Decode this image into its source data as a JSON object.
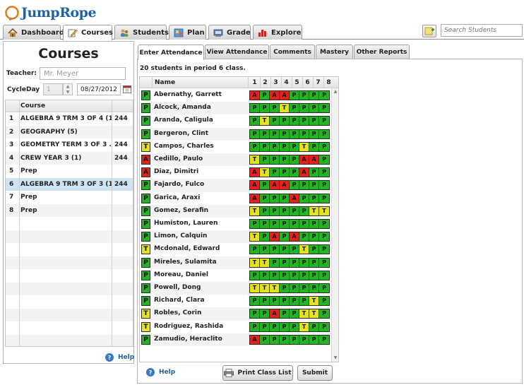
{
  "app": {
    "name": "JumpRope"
  },
  "nav": {
    "tabs": [
      {
        "label": "Dashboard",
        "icon": "house-icon"
      },
      {
        "label": "Courses",
        "icon": "pencil-icon"
      },
      {
        "label": "Students",
        "icon": "students-icon"
      },
      {
        "label": "Plan",
        "icon": "plan-icon"
      },
      {
        "label": "Grade",
        "icon": "grade-icon"
      },
      {
        "label": "Explore",
        "icon": "bar-chart-icon"
      }
    ],
    "active": "Courses"
  },
  "search": {
    "placeholder": "Search Students"
  },
  "left": {
    "title": "Courses",
    "teacher_label": "Teacher:",
    "teacher_value": "Mr. Meyer",
    "cycleday_label": "CycleDay",
    "cycleday_value": "1",
    "date_value": "08/27/2012",
    "table_header": "Course",
    "courses": [
      {
        "num": "1",
        "name": "ALGEBRA 9 TRM 3 OF 4 (1)",
        "room": "244"
      },
      {
        "num": "2",
        "name": "GEOGRAPHY (5)",
        "room": ""
      },
      {
        "num": "3",
        "name": "GEOMETRY TERM 3 OF 3 ...",
        "room": "244"
      },
      {
        "num": "4",
        "name": "CREW YEAR 3 (1)",
        "room": "244"
      },
      {
        "num": "5",
        "name": "Prep",
        "room": ""
      },
      {
        "num": "6",
        "name": "ALGEBRA 9 TRM 3 OF 3 (1)",
        "room": "244"
      },
      {
        "num": "7",
        "name": "Prep",
        "room": ""
      },
      {
        "num": "8",
        "name": "Prep",
        "room": ""
      }
    ],
    "selected_index": 5,
    "help_label": "Help"
  },
  "right": {
    "tabs": [
      "Enter Attendance",
      "View Attendance",
      "Comments",
      "Mastery",
      "Other Reports"
    ],
    "active_tab": "Enter Attendance",
    "summary": "20 students in period 6 class.",
    "name_header": "Name",
    "periods": [
      "1",
      "2",
      "3",
      "4",
      "5",
      "6",
      "7",
      "8"
    ],
    "students": [
      {
        "name": "Abernathy, Garrett",
        "status": "P",
        "marks": [
          "A",
          "P",
          "A",
          "A",
          "P",
          "P",
          "P",
          "P"
        ]
      },
      {
        "name": "Alcock, Amanda",
        "status": "P",
        "marks": [
          "P",
          "P",
          "P",
          "T",
          "P",
          "P",
          "P",
          "P"
        ]
      },
      {
        "name": "Aranda, Caligula",
        "status": "P",
        "marks": [
          "P",
          "T",
          "P",
          "P",
          "P",
          "P",
          "P",
          "P"
        ]
      },
      {
        "name": "Bergeron, Clint",
        "status": "P",
        "marks": [
          "P",
          "P",
          "P",
          "P",
          "P",
          "P",
          "P",
          "P"
        ]
      },
      {
        "name": "Campos, Charles",
        "status": "T",
        "marks": [
          "P",
          "P",
          "P",
          "P",
          "P",
          "T",
          "P",
          "P"
        ]
      },
      {
        "name": "Cedillo, Paulo",
        "status": "A",
        "marks": [
          "T",
          "P",
          "P",
          "P",
          "P",
          "A",
          "A",
          "P"
        ]
      },
      {
        "name": "Diaz, Dimitri",
        "status": "A",
        "marks": [
          "A",
          "T",
          "P",
          "P",
          "P",
          "A",
          "P",
          "P"
        ]
      },
      {
        "name": "Fajardo, Fulco",
        "status": "P",
        "marks": [
          "A",
          "P",
          "A",
          "A",
          "P",
          "P",
          "P",
          "P"
        ]
      },
      {
        "name": "Garica, Araxi",
        "status": "P",
        "marks": [
          "A",
          "P",
          "P",
          "P",
          "A",
          "P",
          "P",
          "P"
        ]
      },
      {
        "name": "Gomez, Serafin",
        "status": "P",
        "marks": [
          "T",
          "P",
          "P",
          "P",
          "P",
          "P",
          "T",
          "T"
        ]
      },
      {
        "name": "Humiston, Lauren",
        "status": "P",
        "marks": [
          "P",
          "P",
          "P",
          "P",
          "P",
          "P",
          "P",
          "P"
        ]
      },
      {
        "name": "Limon, Calquin",
        "status": "P",
        "marks": [
          "T",
          "P",
          "A",
          "P",
          "A",
          "P",
          "P",
          "P"
        ]
      },
      {
        "name": "Mcdonald, Edward",
        "status": "T",
        "marks": [
          "P",
          "P",
          "P",
          "P",
          "P",
          "T",
          "P",
          "P"
        ]
      },
      {
        "name": "Mireles, Sulamita",
        "status": "P",
        "marks": [
          "T",
          "T",
          "P",
          "P",
          "P",
          "P",
          "P",
          "P"
        ]
      },
      {
        "name": "Moreau, Daniel",
        "status": "P",
        "marks": [
          "P",
          "P",
          "P",
          "P",
          "P",
          "P",
          "P",
          "P"
        ]
      },
      {
        "name": "Powell, Dong",
        "status": "P",
        "marks": [
          "T",
          "T",
          "T",
          "P",
          "P",
          "P",
          "P",
          "P"
        ]
      },
      {
        "name": "Richard, Clara",
        "status": "P",
        "marks": [
          "P",
          "P",
          "P",
          "P",
          "P",
          "P",
          "T",
          "P"
        ]
      },
      {
        "name": "Robles, Corin",
        "status": "T",
        "marks": [
          "P",
          "P",
          "A",
          "P",
          "P",
          "T",
          "T",
          "P"
        ]
      },
      {
        "name": "Rodriguez, Rashida",
        "status": "T",
        "marks": [
          "P",
          "P",
          "P",
          "P",
          "P",
          "T",
          "P",
          "P"
        ]
      },
      {
        "name": "Zamudio, Heraclito",
        "status": "P",
        "marks": [
          "A",
          "P",
          "P",
          "P",
          "P",
          "P",
          "P",
          "P"
        ]
      }
    ],
    "help_label": "Help",
    "print_label": "Print Class List",
    "submit_label": "Submit"
  },
  "colors": {
    "P": "#22b422",
    "T": "#e6e31e",
    "A": "#e3211e",
    "selected_row": "#cfe4f3",
    "brand": "#1f63a6"
  }
}
